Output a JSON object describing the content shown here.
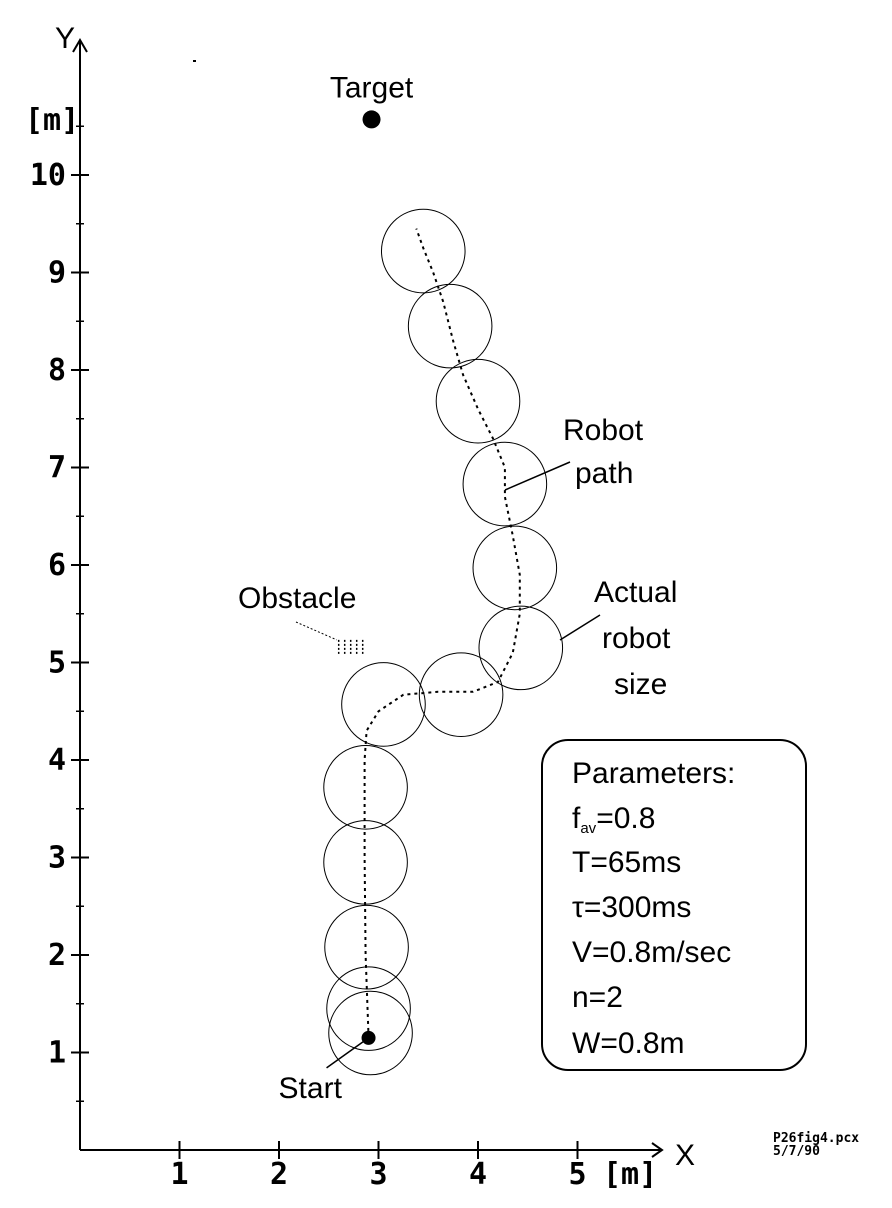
{
  "chart_data": {
    "type": "scatter",
    "xlabel": "X",
    "ylabel": "Y",
    "x_unit_label": "[m]",
    "y_unit_label": "[m]",
    "xlim": [
      0,
      5.8
    ],
    "ylim": [
      0,
      11.2
    ],
    "x_ticks": [
      "1",
      "2",
      "3",
      "4",
      "5"
    ],
    "y_ticks": [
      "1",
      "2",
      "3",
      "4",
      "5",
      "6",
      "7",
      "8",
      "9",
      "10"
    ],
    "grid": false,
    "target": {
      "label": "Target",
      "x": 2.93,
      "y": 10.57
    },
    "start": {
      "label": "Start",
      "x": 2.9,
      "y": 1.15
    },
    "obstacle": {
      "label": "Obstacle",
      "x": 2.6,
      "y": 5.15
    },
    "robot_path_label": [
      "Robot",
      "path"
    ],
    "robot_size_label": [
      "Actual",
      "robot",
      "size"
    ],
    "robot_path": [
      [
        2.9,
        1.15
      ],
      [
        2.87,
        2.0
      ],
      [
        2.86,
        3.0
      ],
      [
        2.86,
        4.0
      ],
      [
        2.88,
        4.3
      ],
      [
        3.0,
        4.5
      ],
      [
        3.25,
        4.67
      ],
      [
        3.6,
        4.7
      ],
      [
        3.95,
        4.7
      ],
      [
        4.2,
        4.8
      ],
      [
        4.35,
        5.1
      ],
      [
        4.42,
        5.5
      ],
      [
        4.42,
        5.9
      ],
      [
        4.35,
        6.3
      ],
      [
        4.27,
        6.7
      ],
      [
        4.27,
        7.0
      ],
      [
        4.15,
        7.3
      ],
      [
        4.0,
        7.6
      ],
      [
        3.85,
        7.95
      ],
      [
        3.75,
        8.3
      ],
      [
        3.65,
        8.7
      ],
      [
        3.55,
        9.0
      ],
      [
        3.45,
        9.25
      ],
      [
        3.38,
        9.45
      ]
    ],
    "robot_positions": [
      [
        2.92,
        1.2
      ],
      [
        2.9,
        1.45
      ],
      [
        2.88,
        2.08
      ],
      [
        2.87,
        2.95
      ],
      [
        2.87,
        3.72
      ],
      [
        3.05,
        4.57
      ],
      [
        3.83,
        4.67
      ],
      [
        4.43,
        5.15
      ],
      [
        4.37,
        5.97
      ],
      [
        4.27,
        6.83
      ],
      [
        4.0,
        7.68
      ],
      [
        3.72,
        8.45
      ],
      [
        3.45,
        9.22
      ]
    ],
    "robot_radius": 0.42
  },
  "parameters_box": {
    "title": "Parameters:",
    "f_symbol": "f",
    "f_subscript": "av",
    "f_value": "=0.8",
    "lines": [
      "T=65ms",
      "τ=300ms",
      "V=0.8m/sec",
      "n=2",
      "W=0.8m"
    ]
  },
  "figure_note": [
    "P26fig4.pcx",
    "5/7/90"
  ]
}
